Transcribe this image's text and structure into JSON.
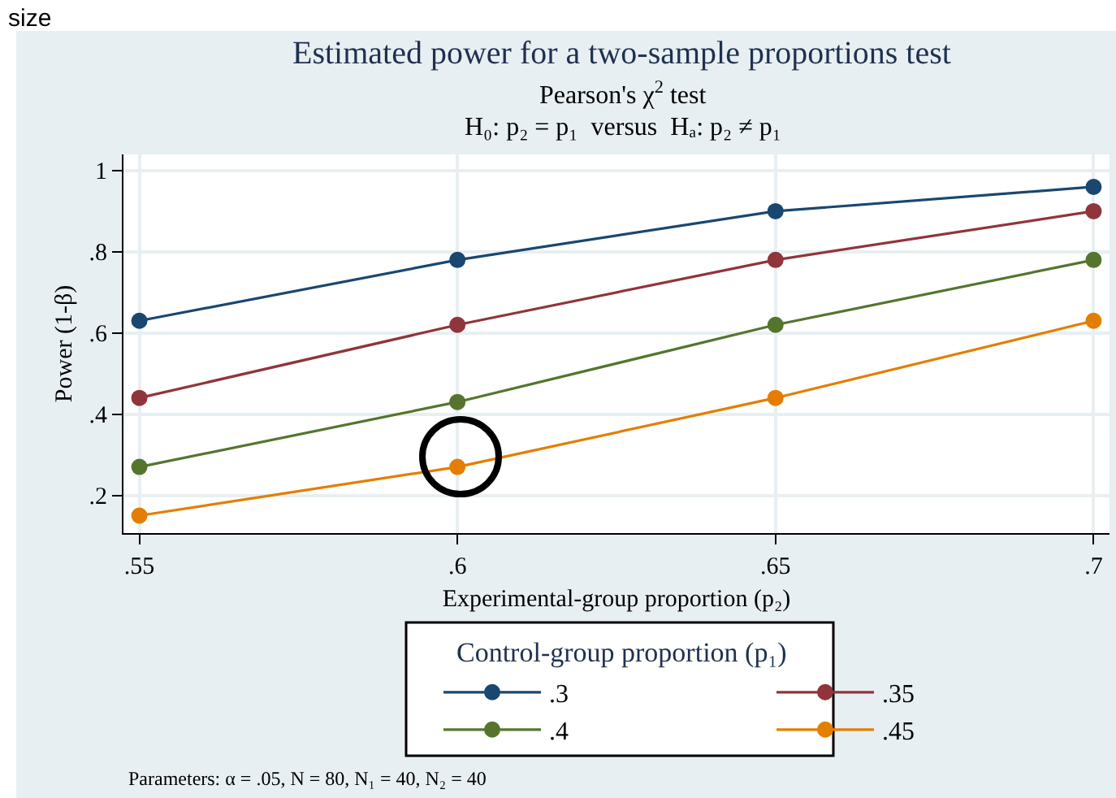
{
  "chart_data": {
    "type": "line",
    "title": "Estimated power for a two-sample proportions test",
    "subtitle": "Pearson's χ$^{2}$ test\nH₀: p₂ = p₁  versus  Hₐ: p₂ ≠ p₁",
    "xlabel": "Experimental-group proportion (p₂)",
    "ylabel": "Power (1-β)",
    "legend_title": "Control-group proportion (p₁)",
    "annotations": [
      "size",
      "Parameters: α = .05, N = 80, N₁ = 40, N₂ = 40"
    ],
    "x": [
      0.55,
      0.6,
      0.65,
      0.7
    ],
    "series": [
      {
        "name": ".3",
        "color": "#1a476f",
        "values": [
          0.63,
          0.78,
          0.9,
          0.96
        ]
      },
      {
        "name": ".35",
        "color": "#90353b",
        "values": [
          0.44,
          0.62,
          0.78,
          0.9
        ]
      },
      {
        "name": ".4",
        "color": "#55752f",
        "values": [
          0.27,
          0.43,
          0.62,
          0.78
        ]
      },
      {
        "name": ".45",
        "color": "#e37e00",
        "values": [
          0.15,
          0.27,
          0.44,
          0.63
        ]
      }
    ],
    "xlim": [
      0.5475,
      0.7025
    ],
    "ylim": [
      0.107,
      1.04
    ],
    "xticks": [
      {
        "value": 0.55,
        "label": ".55"
      },
      {
        "value": 0.6,
        "label": ".6"
      },
      {
        "value": 0.65,
        "label": ".65"
      },
      {
        "value": 0.7,
        "label": ".7"
      }
    ],
    "yticks": [
      {
        "value": 0.2,
        "label": ".2"
      },
      {
        "value": 0.4,
        "label": ".4"
      },
      {
        "value": 0.6,
        "label": ".6"
      },
      {
        "value": 0.8,
        "label": ".8"
      },
      1
    ],
    "grid": true,
    "legend": "bottom",
    "marker": "circle",
    "line_style": "solid"
  }
}
